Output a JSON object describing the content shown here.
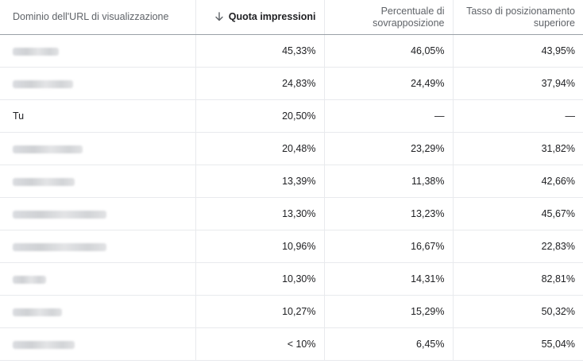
{
  "columns": {
    "domain": "Dominio dell'URL di visualizzazione",
    "impression_share": "Quota impressioni",
    "overlap_rate_line1": "Percentuale di",
    "overlap_rate_line2": "sovrapposizione",
    "top_rate_line1": "Tasso di posizionamento",
    "top_rate_line2": "superiore"
  },
  "sort_icon": "arrow-down-icon",
  "rows": [
    {
      "domain": "",
      "blurred": true,
      "impression_share": "45,33%",
      "overlap_rate": "46,05%",
      "top_rate": "43,95%"
    },
    {
      "domain": "",
      "blurred": true,
      "impression_share": "24,83%",
      "overlap_rate": "24,49%",
      "top_rate": "37,94%"
    },
    {
      "domain": "Tu",
      "blurred": false,
      "impression_share": "20,50%",
      "overlap_rate": "—",
      "top_rate": "—"
    },
    {
      "domain": "",
      "blurred": true,
      "impression_share": "20,48%",
      "overlap_rate": "23,29%",
      "top_rate": "31,82%"
    },
    {
      "domain": "",
      "blurred": true,
      "impression_share": "13,39%",
      "overlap_rate": "11,38%",
      "top_rate": "42,66%"
    },
    {
      "domain": "",
      "blurred": true,
      "impression_share": "13,30%",
      "overlap_rate": "13,23%",
      "top_rate": "45,67%"
    },
    {
      "domain": "",
      "blurred": true,
      "impression_share": "10,96%",
      "overlap_rate": "16,67%",
      "top_rate": "22,83%"
    },
    {
      "domain": "",
      "blurred": true,
      "impression_share": "10,30%",
      "overlap_rate": "14,31%",
      "top_rate": "82,81%"
    },
    {
      "domain": "",
      "blurred": true,
      "impression_share": "10,27%",
      "overlap_rate": "15,29%",
      "top_rate": "50,32%"
    },
    {
      "domain": "",
      "blurred": true,
      "impression_share": "< 10%",
      "overlap_rate": "6,45%",
      "top_rate": "55,04%"
    }
  ]
}
